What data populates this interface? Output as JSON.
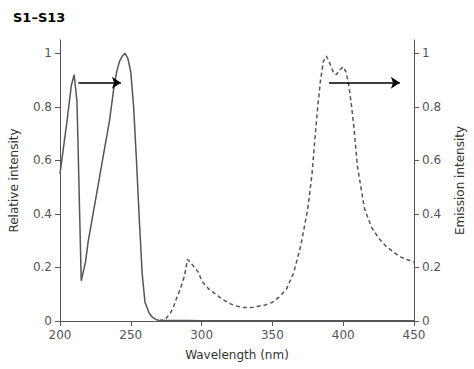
{
  "chart_data": {
    "type": "line",
    "title": "S1–S13",
    "xlabel": "Wavelength (nm)",
    "ylabel": "Relative intensity",
    "y2label": "Emission intensity",
    "xlim": [
      200,
      450
    ],
    "xticks": [
      200,
      250,
      300,
      350,
      400,
      450
    ],
    "ylim": [
      0.0,
      1.05
    ],
    "yticks": [
      0,
      0.2,
      0.4,
      0.6,
      0.8,
      1
    ],
    "y2lim": [
      0.0,
      1.05
    ],
    "y2ticks": [
      0,
      0.2,
      0.4,
      0.6,
      0.8,
      1
    ],
    "grid": false,
    "series": [
      {
        "color": "#555555",
        "line_style": "solid",
        "x": [
          200,
          205,
          208,
          210,
          212,
          215,
          218,
          220,
          225,
          230,
          235,
          238,
          240,
          242,
          244,
          246,
          248,
          250,
          252,
          254,
          256,
          258,
          260,
          263,
          265,
          268,
          270,
          275,
          280,
          290,
          300,
          320,
          350,
          400,
          450
        ],
        "values": [
          0.55,
          0.75,
          0.88,
          0.92,
          0.82,
          0.15,
          0.22,
          0.3,
          0.45,
          0.6,
          0.75,
          0.87,
          0.93,
          0.97,
          0.99,
          1.0,
          0.98,
          0.93,
          0.8,
          0.6,
          0.38,
          0.18,
          0.07,
          0.03,
          0.015,
          0.005,
          0.003,
          0.002,
          0.002,
          0.002,
          0.001,
          0.001,
          0.001,
          0.001,
          0.001
        ]
      },
      {
        "color": "#555555",
        "line_style": "dashed",
        "x": [
          270,
          275,
          278,
          280,
          282,
          285,
          288,
          290,
          292,
          295,
          298,
          300,
          305,
          310,
          315,
          320,
          325,
          330,
          335,
          340,
          345,
          350,
          355,
          360,
          365,
          370,
          375,
          378,
          380,
          382,
          384,
          386,
          388,
          390,
          393,
          395,
          398,
          400,
          402,
          404,
          406,
          408,
          410,
          415,
          420,
          425,
          430,
          435,
          440,
          445,
          450
        ],
        "values": [
          0.0,
          0.01,
          0.03,
          0.05,
          0.08,
          0.12,
          0.17,
          0.23,
          0.22,
          0.2,
          0.18,
          0.15,
          0.12,
          0.1,
          0.08,
          0.065,
          0.055,
          0.05,
          0.05,
          0.055,
          0.06,
          0.07,
          0.09,
          0.12,
          0.18,
          0.28,
          0.42,
          0.55,
          0.68,
          0.8,
          0.9,
          0.97,
          0.99,
          0.97,
          0.93,
          0.92,
          0.94,
          0.95,
          0.93,
          0.88,
          0.8,
          0.7,
          0.58,
          0.42,
          0.35,
          0.31,
          0.28,
          0.26,
          0.24,
          0.23,
          0.22
        ]
      }
    ],
    "annotations": [
      {
        "type": "arrow",
        "color": "#000000",
        "x": [
          213,
          243
        ],
        "y": [
          0.89,
          0.89
        ]
      },
      {
        "type": "arrow",
        "color": "#000000",
        "x": [
          390,
          440
        ],
        "y": [
          0.89,
          0.89
        ]
      }
    ]
  }
}
